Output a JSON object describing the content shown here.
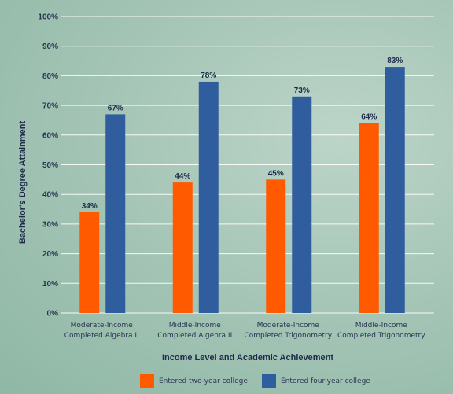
{
  "chart_data": {
    "type": "bar",
    "categories": [
      [
        "Moderate-Income",
        "Completed Algebra II"
      ],
      [
        "Middle-Income",
        "Completed Algebra II"
      ],
      [
        "Moderate-Income",
        "Completed Trigonometry"
      ],
      [
        "Middle-Income",
        "Completed Trigonometry"
      ]
    ],
    "series": [
      {
        "name": "Entered two-year college",
        "values": [
          34,
          44,
          45,
          64
        ],
        "labels": [
          "34%",
          "44%",
          "45%",
          "64%"
        ],
        "color": "#ff5a00"
      },
      {
        "name": "Entered four-year college",
        "values": [
          67,
          78,
          73,
          83
        ],
        "labels": [
          "67%",
          "78%",
          "73%",
          "83%"
        ],
        "color": "#2f5d9e"
      }
    ],
    "yticks": [
      "0%",
      "10%",
      "20%",
      "30%",
      "40%",
      "50%",
      "60%",
      "70%",
      "80%",
      "90%",
      "100%"
    ],
    "ylim": [
      0,
      100
    ],
    "xlabel": "Income Level and Academic Achievement",
    "ylabel": "Bachelor's Degree Attainment",
    "grid": true,
    "legend": "bottom"
  }
}
